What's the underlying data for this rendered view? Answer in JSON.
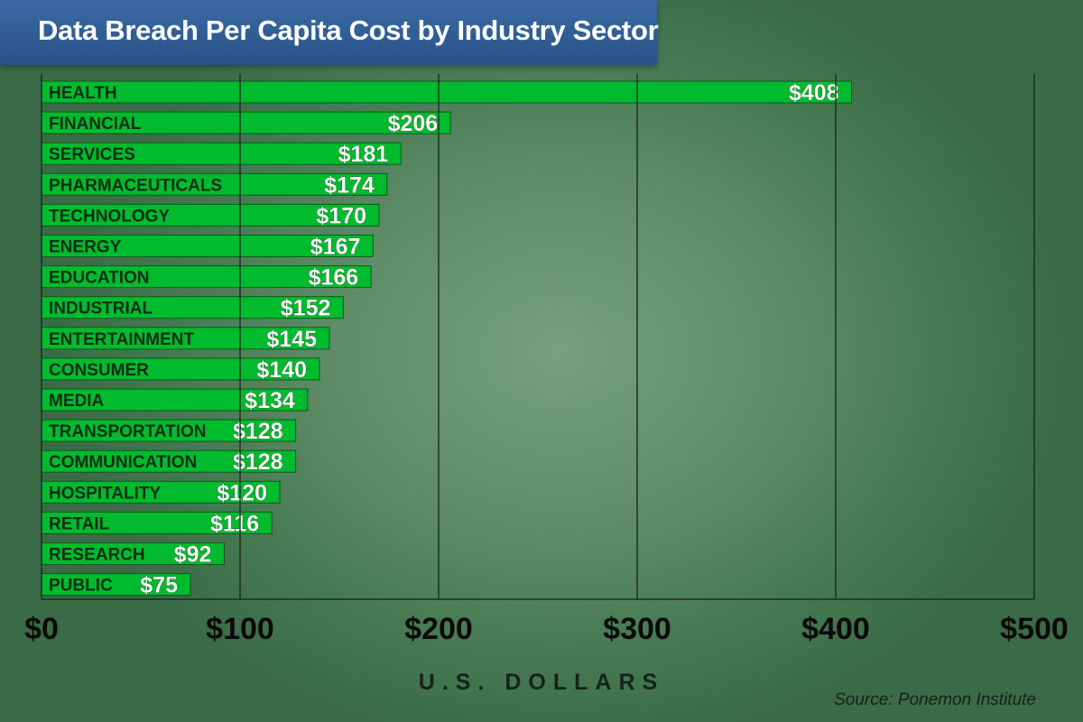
{
  "chart_data": {
    "type": "bar",
    "orientation": "horizontal",
    "title": "Data Breach Per Capita Cost by Industry Sector",
    "categories": [
      "HEALTH",
      "FINANCIAL",
      "SERVICES",
      "PHARMACEUTICALS",
      "TECHNOLOGY",
      "ENERGY",
      "EDUCATION",
      "INDUSTRIAL",
      "ENTERTAINMENT",
      "CONSUMER",
      "MEDIA",
      "TRANSPORTATION",
      "COMMUNICATION",
      "HOSPITALITY",
      "RETAIL",
      "RESEARCH",
      "PUBLIC"
    ],
    "values": [
      408,
      206,
      181,
      174,
      170,
      167,
      166,
      152,
      145,
      140,
      134,
      128,
      128,
      120,
      116,
      92,
      75
    ],
    "value_labels": [
      "$408",
      "$206",
      "$181",
      "$174",
      "$170",
      "$167",
      "$166",
      "$152",
      "$145",
      "$140",
      "$134",
      "$128",
      "$128",
      "$120",
      "$116",
      "$92",
      "$75"
    ],
    "xticks": [
      0,
      100,
      200,
      300,
      400,
      500
    ],
    "xtick_labels": [
      "$0",
      "$100",
      "$200",
      "$300",
      "$400",
      "$500"
    ],
    "xlim": [
      0,
      500
    ],
    "xlabel": "U.S. DOLLARS",
    "ylabel": "",
    "grid": true,
    "source": "Source: Ponemon Institute",
    "colors": {
      "bar": "#00bb2d",
      "title_bg": "#2f5d96"
    }
  }
}
